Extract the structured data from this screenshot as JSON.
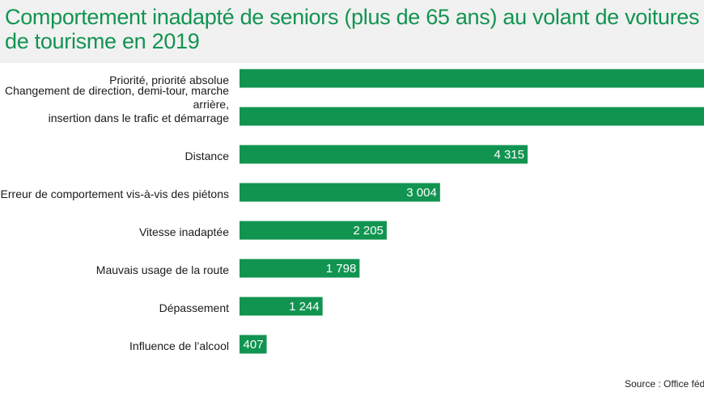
{
  "title": "Comportement inadapté de seniors (plus de 65 ans) au volant de voitures de tourisme en 2019",
  "source": "Source : Office fédé",
  "colors": {
    "bar": "#129451",
    "title": "#129451",
    "label": "#1a1a1a",
    "value": "#ffffff"
  },
  "chart_data": {
    "type": "bar",
    "orientation": "horizontal",
    "title": "Comportement inadapté de seniors (plus de 65 ans) au volant de voitures de tourisme en 2019",
    "categories": [
      [
        "Priorité, priorité absolue"
      ],
      [
        "Changement de direction, demi-tour, marche",
        "arrière,",
        "insertion dans le trafic et démarrage"
      ],
      [
        "Distance"
      ],
      [
        "Erreur de comportement vis-à-vis des piétons"
      ],
      [
        "Vitesse inadaptée"
      ],
      [
        "Mauvais usage de la route"
      ],
      [
        "Dépassement"
      ],
      [
        "Influence de l’alcool"
      ]
    ],
    "values": [
      null,
      null,
      4315,
      3004,
      2205,
      1798,
      1244,
      407
    ],
    "value_labels": [
      "",
      "",
      "4 315",
      "3 004",
      "2 205",
      "1 798",
      "1 244",
      "407"
    ],
    "truncated": [
      true,
      true,
      false,
      false,
      false,
      false,
      false,
      false
    ],
    "grid": false,
    "legend": "none"
  }
}
